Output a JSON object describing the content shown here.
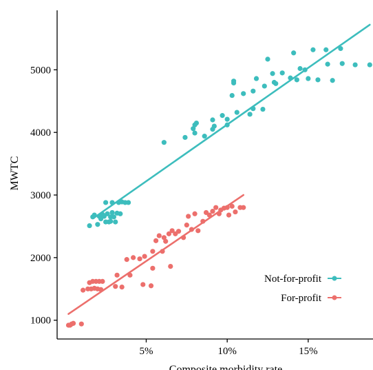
{
  "chart_data": {
    "type": "scatter",
    "title": "",
    "xlabel": "Composite morbidity rate",
    "ylabel": "MWTC",
    "xlim": [
      -0.005,
      0.19
    ],
    "ylim": [
      700,
      5950
    ],
    "x_ticks": [
      {
        "value": 0.05,
        "label": "5%"
      },
      {
        "value": 0.1,
        "label": "10%"
      },
      {
        "value": 0.15,
        "label": "15%"
      }
    ],
    "y_ticks": [
      {
        "value": 1000,
        "label": "1000"
      },
      {
        "value": 2000,
        "label": "2000"
      },
      {
        "value": 3000,
        "label": "3000"
      },
      {
        "value": 4000,
        "label": "4000"
      },
      {
        "value": 5000,
        "label": "5000"
      }
    ],
    "legend_position": "bottom-right",
    "grid": false,
    "series": [
      {
        "name": "Not-for-profit",
        "color": "#3dbdbd",
        "trend": {
          "x": [
            0.018,
            0.188
          ],
          "y": [
            2640,
            5720
          ]
        },
        "points": [
          [
            0.015,
            2510
          ],
          [
            0.017,
            2650
          ],
          [
            0.018,
            2680
          ],
          [
            0.02,
            2530
          ],
          [
            0.021,
            2660
          ],
          [
            0.022,
            2620
          ],
          [
            0.023,
            2690
          ],
          [
            0.024,
            2660
          ],
          [
            0.025,
            2570
          ],
          [
            0.025,
            2880
          ],
          [
            0.026,
            2700
          ],
          [
            0.027,
            2570
          ],
          [
            0.028,
            2650
          ],
          [
            0.028,
            2580
          ],
          [
            0.029,
            2720
          ],
          [
            0.029,
            2880
          ],
          [
            0.03,
            2650
          ],
          [
            0.031,
            2570
          ],
          [
            0.032,
            2710
          ],
          [
            0.033,
            2880
          ],
          [
            0.034,
            2700
          ],
          [
            0.035,
            2890
          ],
          [
            0.037,
            2880
          ],
          [
            0.039,
            2880
          ],
          [
            0.061,
            3840
          ],
          [
            0.074,
            3920
          ],
          [
            0.079,
            4060
          ],
          [
            0.08,
            4120
          ],
          [
            0.081,
            4150
          ],
          [
            0.08,
            3990
          ],
          [
            0.086,
            3940
          ],
          [
            0.091,
            4050
          ],
          [
            0.092,
            4100
          ],
          [
            0.091,
            4200
          ],
          [
            0.097,
            4270
          ],
          [
            0.1,
            4120
          ],
          [
            0.1,
            4210
          ],
          [
            0.103,
            4590
          ],
          [
            0.104,
            4820
          ],
          [
            0.104,
            4790
          ],
          [
            0.106,
            4320
          ],
          [
            0.11,
            4620
          ],
          [
            0.114,
            4290
          ],
          [
            0.116,
            4380
          ],
          [
            0.116,
            4660
          ],
          [
            0.118,
            4860
          ],
          [
            0.122,
            4370
          ],
          [
            0.123,
            4740
          ],
          [
            0.125,
            5170
          ],
          [
            0.128,
            4940
          ],
          [
            0.129,
            4800
          ],
          [
            0.13,
            4780
          ],
          [
            0.134,
            4950
          ],
          [
            0.139,
            4870
          ],
          [
            0.141,
            5270
          ],
          [
            0.143,
            4840
          ],
          [
            0.145,
            5020
          ],
          [
            0.148,
            5000
          ],
          [
            0.15,
            4860
          ],
          [
            0.153,
            5320
          ],
          [
            0.156,
            4840
          ],
          [
            0.161,
            5320
          ],
          [
            0.162,
            5090
          ],
          [
            0.165,
            4830
          ],
          [
            0.17,
            5340
          ],
          [
            0.171,
            5100
          ],
          [
            0.179,
            5080
          ],
          [
            0.188,
            5080
          ]
        ]
      },
      {
        "name": "For-profit",
        "color": "#ec6f6c",
        "trend": {
          "x": [
            0.002,
            0.11
          ],
          "y": [
            1100,
            3000
          ]
        },
        "points": [
          [
            0.002,
            920
          ],
          [
            0.003,
            920
          ],
          [
            0.004,
            940
          ],
          [
            0.005,
            950
          ],
          [
            0.01,
            940
          ],
          [
            0.011,
            1480
          ],
          [
            0.014,
            1500
          ],
          [
            0.015,
            1600
          ],
          [
            0.016,
            1500
          ],
          [
            0.017,
            1620
          ],
          [
            0.018,
            1510
          ],
          [
            0.019,
            1620
          ],
          [
            0.02,
            1500
          ],
          [
            0.021,
            1620
          ],
          [
            0.022,
            1490
          ],
          [
            0.023,
            1620
          ],
          [
            0.031,
            1540
          ],
          [
            0.032,
            1720
          ],
          [
            0.035,
            1530
          ],
          [
            0.038,
            1970
          ],
          [
            0.04,
            1720
          ],
          [
            0.042,
            2000
          ],
          [
            0.046,
            1980
          ],
          [
            0.048,
            1570
          ],
          [
            0.049,
            2020
          ],
          [
            0.053,
            1550
          ],
          [
            0.054,
            2100
          ],
          [
            0.054,
            1830
          ],
          [
            0.056,
            2270
          ],
          [
            0.058,
            2350
          ],
          [
            0.06,
            2100
          ],
          [
            0.061,
            2320
          ],
          [
            0.062,
            2260
          ],
          [
            0.064,
            2380
          ],
          [
            0.065,
            1860
          ],
          [
            0.066,
            2430
          ],
          [
            0.068,
            2380
          ],
          [
            0.07,
            2420
          ],
          [
            0.073,
            2320
          ],
          [
            0.075,
            2520
          ],
          [
            0.076,
            2660
          ],
          [
            0.078,
            2450
          ],
          [
            0.08,
            2700
          ],
          [
            0.082,
            2430
          ],
          [
            0.085,
            2580
          ],
          [
            0.087,
            2720
          ],
          [
            0.089,
            2680
          ],
          [
            0.091,
            2740
          ],
          [
            0.093,
            2800
          ],
          [
            0.095,
            2700
          ],
          [
            0.096,
            2760
          ],
          [
            0.098,
            2790
          ],
          [
            0.1,
            2800
          ],
          [
            0.101,
            2680
          ],
          [
            0.103,
            2820
          ],
          [
            0.105,
            2730
          ],
          [
            0.108,
            2800
          ],
          [
            0.11,
            2800
          ]
        ]
      }
    ]
  }
}
